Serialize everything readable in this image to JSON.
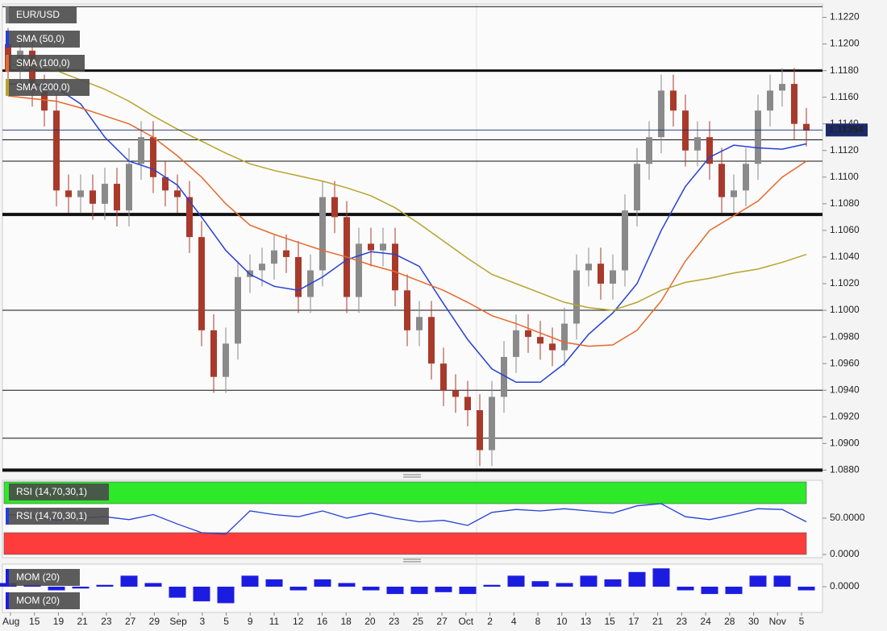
{
  "chart_data": {
    "type": "candlestick",
    "symbol": "EUR/USD",
    "x_labels": [
      "Aug",
      "15",
      "19",
      "21",
      "23",
      "27",
      "29",
      "Sep",
      "3",
      "5",
      "9",
      "11",
      "12",
      "16",
      "18",
      "20",
      "23",
      "25",
      "27",
      "Oct",
      "2",
      "4",
      "8",
      "10",
      "13",
      "15",
      "17",
      "21",
      "23",
      "24",
      "28",
      "30",
      "Nov",
      "5"
    ],
    "candles": {
      "open": [
        1.12,
        1.118,
        1.1195,
        1.1165,
        1.115,
        1.109,
        1.1085,
        1.109,
        1.108,
        1.1095,
        1.1075,
        1.111,
        1.113,
        1.11,
        1.109,
        1.1085,
        1.1055,
        1.0985,
        1.095,
        1.0975,
        1.1025,
        1.103,
        1.1035,
        1.1045,
        1.104,
        1.101,
        1.103,
        1.1085,
        1.107,
        1.101,
        1.105,
        1.1045,
        1.105,
        1.1015,
        1.0985,
        1.0995,
        1.096,
        1.094,
        1.0935,
        1.0925,
        1.0895,
        1.0935,
        1.0965,
        1.0985,
        1.098,
        1.0975,
        1.097,
        1.099,
        1.103,
        1.1035,
        1.102,
        1.103,
        1.1075,
        1.111,
        1.113,
        1.1165,
        1.115,
        1.112,
        1.113,
        1.111,
        1.1085,
        1.109,
        1.111,
        1.115,
        1.1165,
        1.117,
        1.114
      ],
      "high": [
        1.1212,
        1.1207,
        1.1207,
        1.1177,
        1.1162,
        1.1102,
        1.1102,
        1.1102,
        1.1107,
        1.1107,
        1.1122,
        1.1142,
        1.1142,
        1.1112,
        1.1102,
        1.1097,
        1.1067,
        1.0997,
        1.0987,
        1.1037,
        1.1042,
        1.1047,
        1.1057,
        1.1057,
        1.1052,
        1.1042,
        1.1097,
        1.1097,
        1.1082,
        1.1062,
        1.1062,
        1.1062,
        1.1062,
        1.1027,
        1.1007,
        1.1007,
        1.0972,
        1.0952,
        1.0947,
        1.0937,
        1.0947,
        1.0977,
        1.0997,
        1.0997,
        1.0992,
        1.0987,
        1.1002,
        1.1042,
        1.1047,
        1.1047,
        1.1042,
        1.1087,
        1.1122,
        1.1142,
        1.1177,
        1.1177,
        1.1162,
        1.1142,
        1.1142,
        1.1122,
        1.1102,
        1.1122,
        1.1162,
        1.1177,
        1.1182,
        1.1182,
        1.1152
      ],
      "low": [
        1.1168,
        1.1168,
        1.1153,
        1.1138,
        1.1078,
        1.1073,
        1.1073,
        1.1068,
        1.1068,
        1.1063,
        1.1063,
        1.1098,
        1.1088,
        1.1078,
        1.1073,
        1.1043,
        1.0973,
        1.0938,
        1.0938,
        1.0963,
        1.1013,
        1.1018,
        1.1023,
        1.1028,
        1.0998,
        1.0998,
        1.1018,
        1.1058,
        1.0998,
        1.0998,
        1.1033,
        1.1033,
        1.1003,
        1.0973,
        1.0973,
        1.0948,
        1.0928,
        1.0923,
        1.0913,
        1.0883,
        1.0883,
        1.0923,
        1.0953,
        1.0968,
        1.0963,
        1.0958,
        1.0958,
        1.0978,
        1.1018,
        1.1008,
        1.1008,
        1.1018,
        1.1063,
        1.1098,
        1.1118,
        1.1138,
        1.1108,
        1.1108,
        1.1098,
        1.1073,
        1.1073,
        1.1078,
        1.1098,
        1.1138,
        1.1153,
        1.1128,
        1.1123
      ],
      "close": [
        1.118,
        1.1195,
        1.1165,
        1.115,
        1.109,
        1.1085,
        1.109,
        1.108,
        1.1095,
        1.1075,
        1.111,
        1.113,
        1.11,
        1.109,
        1.1085,
        1.1055,
        1.0985,
        1.095,
        1.0975,
        1.1025,
        1.103,
        1.1035,
        1.1045,
        1.104,
        1.101,
        1.103,
        1.1085,
        1.107,
        1.101,
        1.105,
        1.1045,
        1.105,
        1.1015,
        1.0985,
        1.0995,
        1.096,
        1.094,
        1.0935,
        1.0925,
        1.0895,
        1.0935,
        1.0965,
        1.0985,
        1.098,
        1.0975,
        1.097,
        1.099,
        1.103,
        1.1035,
        1.102,
        1.103,
        1.1075,
        1.111,
        1.113,
        1.1165,
        1.115,
        1.112,
        1.113,
        1.111,
        1.1085,
        1.109,
        1.111,
        1.115,
        1.1165,
        1.117,
        1.114,
        1.1135
      ]
    },
    "up_color": "#8a8a8a",
    "down_color": "#a83a2c",
    "ylim": [
      1.0879,
      1.123
    ],
    "yticks": [
      {
        "value": 1.088,
        "label": "1.0880"
      },
      {
        "value": 1.09,
        "label": "1.0900"
      },
      {
        "value": 1.092,
        "label": "1.0920"
      },
      {
        "value": 1.094,
        "label": "1.0940"
      },
      {
        "value": 1.096,
        "label": "1.0960"
      },
      {
        "value": 1.098,
        "label": "1.0980"
      },
      {
        "value": 1.1,
        "label": "1.1000"
      },
      {
        "value": 1.102,
        "label": "1.1020"
      },
      {
        "value": 1.104,
        "label": "1.1040"
      },
      {
        "value": 1.106,
        "label": "1.1060"
      },
      {
        "value": 1.108,
        "label": "1.1080"
      },
      {
        "value": 1.11,
        "label": "1.1100"
      },
      {
        "value": 1.112,
        "label": "1.1120"
      },
      {
        "value": 1.114,
        "label": "1.1140"
      },
      {
        "value": 1.116,
        "label": "1.1160"
      },
      {
        "value": 1.118,
        "label": "1.1180"
      },
      {
        "value": 1.12,
        "label": "1.1200"
      },
      {
        "value": 1.122,
        "label": "1.1220"
      }
    ],
    "last_price": 1.11354,
    "levels": [
      {
        "value": 1.1228,
        "width": 1
      },
      {
        "value": 1.118,
        "width": 3
      },
      {
        "value": 1.1128,
        "width": 1
      },
      {
        "value": 1.1112,
        "width": 1
      },
      {
        "value": 1.1072,
        "width": 4
      },
      {
        "value": 1.1,
        "width": 1
      },
      {
        "value": 1.094,
        "width": 1
      },
      {
        "value": 1.0904,
        "width": 1
      },
      {
        "value": 1.088,
        "width": 4
      }
    ],
    "series": [
      {
        "name": "SMA (50,0)",
        "color": "#2540d8",
        "values": [
          1.117,
          1.117,
          1.1167,
          1.1155,
          1.113,
          1.1112,
          1.1106,
          1.1094,
          1.107,
          1.1045,
          1.1027,
          1.1018,
          1.1015,
          1.1025,
          1.1038,
          1.1044,
          1.1042,
          1.1033,
          1.1005,
          1.0978,
          1.0956,
          1.0946,
          1.0946,
          1.096,
          1.0982,
          1.0998,
          1.102,
          1.106,
          1.1093,
          1.1115,
          1.1124,
          1.1122,
          1.1121,
          1.1125
        ]
      },
      {
        "name": "SMA (100,0)",
        "color": "#e8672a",
        "values": [
          1.1161,
          1.1159,
          1.1157,
          1.1152,
          1.1146,
          1.114,
          1.113,
          1.1116,
          1.11,
          1.108,
          1.1064,
          1.1057,
          1.1051,
          1.1045,
          1.104,
          1.1034,
          1.1029,
          1.1022,
          1.1015,
          1.1006,
          1.0996,
          1.099,
          1.0983,
          1.0976,
          1.0973,
          1.0974,
          1.0985,
          1.1007,
          1.1037,
          1.106,
          1.1071,
          1.1082,
          1.11,
          1.1112
        ]
      },
      {
        "name": "SMA (200,0)",
        "color": "#b6a42c",
        "values": [
          1.1185,
          1.1183,
          1.118,
          1.1173,
          1.1166,
          1.1157,
          1.1146,
          1.1136,
          1.1127,
          1.1118,
          1.111,
          1.1105,
          1.1101,
          1.1097,
          1.1092,
          1.1086,
          1.1077,
          1.1065,
          1.1052,
          1.1039,
          1.1027,
          1.102,
          1.1013,
          1.1006,
          1.1002,
          1.1,
          1.1006,
          1.1015,
          1.1021,
          1.1024,
          1.1028,
          1.1031,
          1.1036,
          1.1042
        ]
      }
    ],
    "rsi": {
      "type": "line",
      "name": "RSI (14,70,30,1)",
      "color": "#2540d8",
      "values": [
        55,
        53,
        47,
        50,
        52,
        48,
        55,
        42,
        30,
        28,
        60,
        55,
        52,
        60,
        50,
        57,
        50,
        45,
        47,
        40,
        58,
        62,
        60,
        63,
        60,
        57,
        67,
        70,
        52,
        48,
        55,
        63,
        62,
        45
      ],
      "ylim": [
        0,
        100
      ],
      "yticks": [
        {
          "value": 0,
          "label": "0.0000"
        },
        {
          "value": 50,
          "label": "50.0000"
        }
      ],
      "bands": [
        {
          "from": 70,
          "to": 100,
          "color": "#2ee82a"
        },
        {
          "from": 0,
          "to": 30,
          "color": "#ff3c3c"
        }
      ]
    },
    "mom": {
      "type": "bar",
      "name": "MOM (20)",
      "color": "#1c1ce0",
      "values": [
        0.001,
        0.0005,
        -0.001,
        -0.0005,
        0.0005,
        0.003,
        0.001,
        -0.003,
        -0.004,
        -0.0045,
        0.003,
        0.002,
        -0.001,
        0.002,
        0.001,
        -0.001,
        -0.002,
        -0.002,
        -0.0015,
        -0.002,
        0.0005,
        0.003,
        0.0015,
        0.001,
        0.003,
        0.002,
        0.004,
        0.005,
        -0.001,
        -0.002,
        -0.002,
        0.003,
        0.003,
        -0.001
      ],
      "ylim": [
        -0.0066,
        0.0055
      ],
      "yticks": [
        {
          "value": 0,
          "label": "0.0000"
        }
      ]
    }
  }
}
